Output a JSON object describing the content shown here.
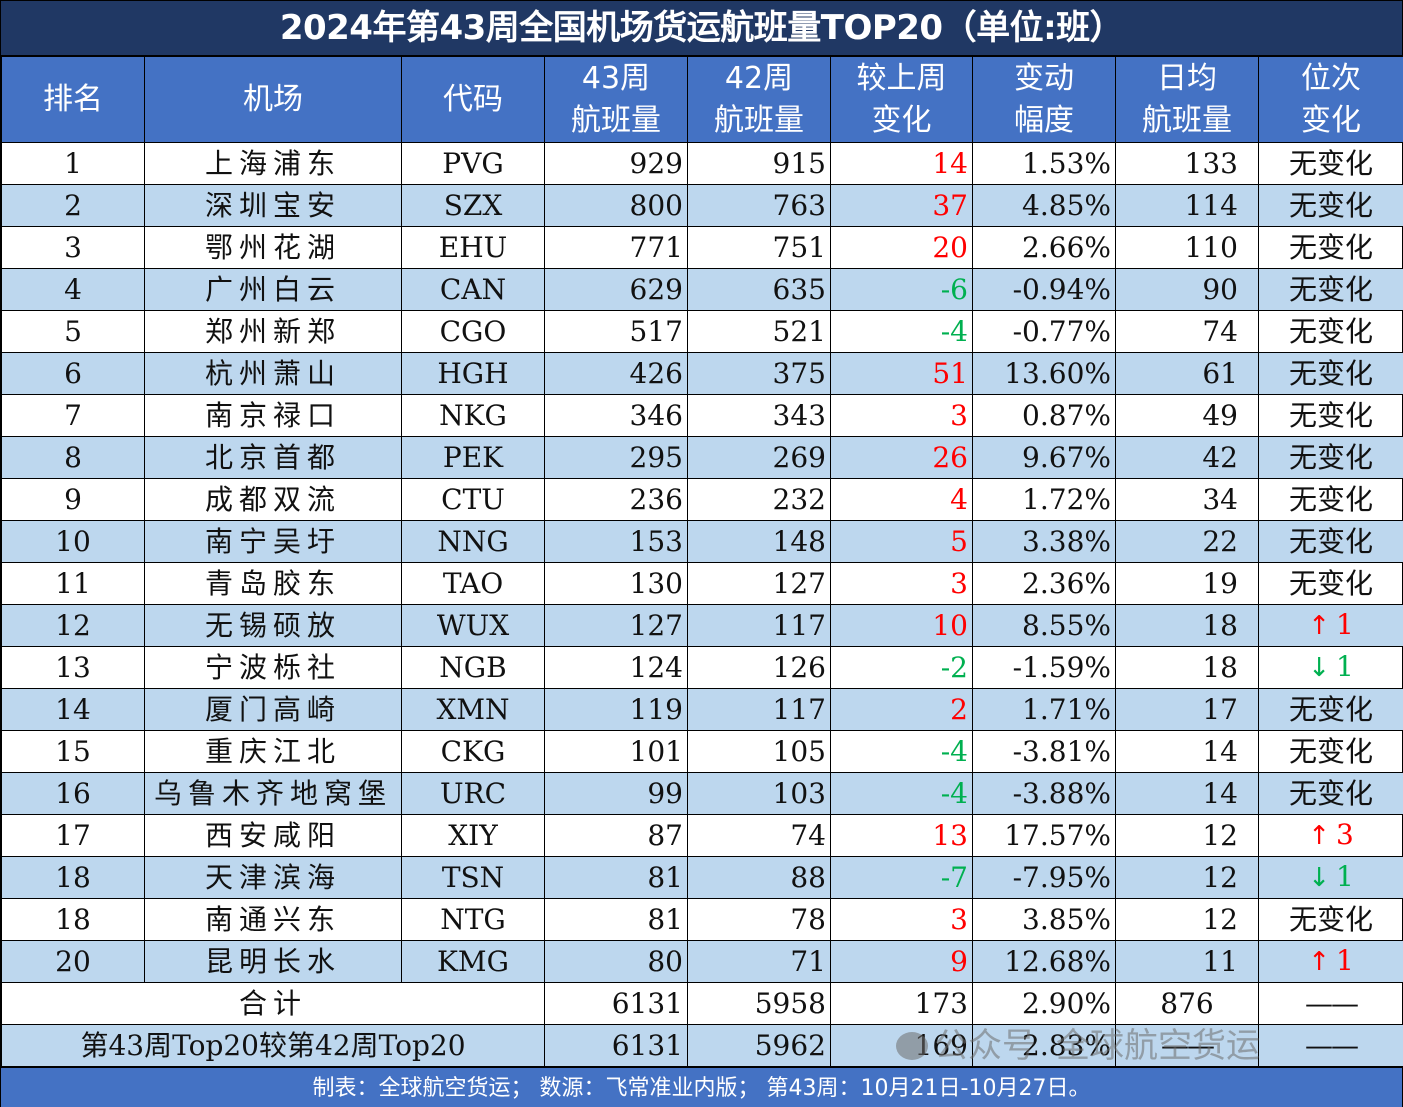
{
  "title": "2024年第43周全国机场货运航班量TOP20（单位:班）",
  "columns": [
    "排名",
    "机场",
    "代码",
    "43周\n航班量",
    "42周\n航班量",
    "较上周\n变化",
    "变动\n幅度",
    "日均\n航班量",
    "位次\n变化"
  ],
  "header": {
    "rank": "排名",
    "airport": "机场",
    "code": "代码",
    "w43_l1": "43周",
    "w43_l2": "航班量",
    "w42_l1": "42周",
    "w42_l2": "航班量",
    "chg_l1": "较上周",
    "chg_l2": "变化",
    "pct_l1": "变动",
    "pct_l2": "幅度",
    "daily_l1": "日均",
    "daily_l2": "航班量",
    "rankchg_l1": "位次",
    "rankchg_l2": "变化"
  },
  "rows": [
    {
      "rank": "1",
      "airport": "上海浦东",
      "code": "PVG",
      "w43": "929",
      "w42": "915",
      "change": "14",
      "change_dir": "up",
      "pct": "1.53%",
      "daily": "133",
      "rank_change": "无变化",
      "rank_dir": "none"
    },
    {
      "rank": "2",
      "airport": "深圳宝安",
      "code": "SZX",
      "w43": "800",
      "w42": "763",
      "change": "37",
      "change_dir": "up",
      "pct": "4.85%",
      "daily": "114",
      "rank_change": "无变化",
      "rank_dir": "none"
    },
    {
      "rank": "3",
      "airport": "鄂州花湖",
      "code": "EHU",
      "w43": "771",
      "w42": "751",
      "change": "20",
      "change_dir": "up",
      "pct": "2.66%",
      "daily": "110",
      "rank_change": "无变化",
      "rank_dir": "none"
    },
    {
      "rank": "4",
      "airport": "广州白云",
      "code": "CAN",
      "w43": "629",
      "w42": "635",
      "change": "-6",
      "change_dir": "down",
      "pct": "-0.94%",
      "daily": "90",
      "rank_change": "无变化",
      "rank_dir": "none"
    },
    {
      "rank": "5",
      "airport": "郑州新郑",
      "code": "CGO",
      "w43": "517",
      "w42": "521",
      "change": "-4",
      "change_dir": "down",
      "pct": "-0.77%",
      "daily": "74",
      "rank_change": "无变化",
      "rank_dir": "none"
    },
    {
      "rank": "6",
      "airport": "杭州萧山",
      "code": "HGH",
      "w43": "426",
      "w42": "375",
      "change": "51",
      "change_dir": "up",
      "pct": "13.60%",
      "daily": "61",
      "rank_change": "无变化",
      "rank_dir": "none"
    },
    {
      "rank": "7",
      "airport": "南京禄口",
      "code": "NKG",
      "w43": "346",
      "w42": "343",
      "change": "3",
      "change_dir": "up",
      "pct": "0.87%",
      "daily": "49",
      "rank_change": "无变化",
      "rank_dir": "none"
    },
    {
      "rank": "8",
      "airport": "北京首都",
      "code": "PEK",
      "w43": "295",
      "w42": "269",
      "change": "26",
      "change_dir": "up",
      "pct": "9.67%",
      "daily": "42",
      "rank_change": "无变化",
      "rank_dir": "none"
    },
    {
      "rank": "9",
      "airport": "成都双流",
      "code": "CTU",
      "w43": "236",
      "w42": "232",
      "change": "4",
      "change_dir": "up",
      "pct": "1.72%",
      "daily": "34",
      "rank_change": "无变化",
      "rank_dir": "none"
    },
    {
      "rank": "10",
      "airport": "南宁吴圩",
      "code": "NNG",
      "w43": "153",
      "w42": "148",
      "change": "5",
      "change_dir": "up",
      "pct": "3.38%",
      "daily": "22",
      "rank_change": "无变化",
      "rank_dir": "none"
    },
    {
      "rank": "11",
      "airport": "青岛胶东",
      "code": "TAO",
      "w43": "130",
      "w42": "127",
      "change": "3",
      "change_dir": "up",
      "pct": "2.36%",
      "daily": "19",
      "rank_change": "无变化",
      "rank_dir": "none"
    },
    {
      "rank": "12",
      "airport": "无锡硕放",
      "code": "WUX",
      "w43": "127",
      "w42": "117",
      "change": "10",
      "change_dir": "up",
      "pct": "8.55%",
      "daily": "18",
      "rank_change": "1",
      "rank_dir": "up"
    },
    {
      "rank": "13",
      "airport": "宁波栎社",
      "code": "NGB",
      "w43": "124",
      "w42": "126",
      "change": "-2",
      "change_dir": "down",
      "pct": "-1.59%",
      "daily": "18",
      "rank_change": "1",
      "rank_dir": "down"
    },
    {
      "rank": "14",
      "airport": "厦门高崎",
      "code": "XMN",
      "w43": "119",
      "w42": "117",
      "change": "2",
      "change_dir": "up",
      "pct": "1.71%",
      "daily": "17",
      "rank_change": "无变化",
      "rank_dir": "none"
    },
    {
      "rank": "15",
      "airport": "重庆江北",
      "code": "CKG",
      "w43": "101",
      "w42": "105",
      "change": "-4",
      "change_dir": "down",
      "pct": "-3.81%",
      "daily": "14",
      "rank_change": "无变化",
      "rank_dir": "none"
    },
    {
      "rank": "16",
      "airport": "乌鲁木齐地窝堡",
      "code": "URC",
      "w43": "99",
      "w42": "103",
      "change": "-4",
      "change_dir": "down",
      "pct": "-3.88%",
      "daily": "14",
      "rank_change": "无变化",
      "rank_dir": "none"
    },
    {
      "rank": "17",
      "airport": "西安咸阳",
      "code": "XIY",
      "w43": "87",
      "w42": "74",
      "change": "13",
      "change_dir": "up",
      "pct": "17.57%",
      "daily": "12",
      "rank_change": "3",
      "rank_dir": "up"
    },
    {
      "rank": "18",
      "airport": "天津滨海",
      "code": "TSN",
      "w43": "81",
      "w42": "88",
      "change": "-7",
      "change_dir": "down",
      "pct": "-7.95%",
      "daily": "12",
      "rank_change": "1",
      "rank_dir": "down"
    },
    {
      "rank": "18",
      "airport": "南通兴东",
      "code": "NTG",
      "w43": "81",
      "w42": "78",
      "change": "3",
      "change_dir": "up",
      "pct": "3.85%",
      "daily": "12",
      "rank_change": "无变化",
      "rank_dir": "none"
    },
    {
      "rank": "20",
      "airport": "昆明长水",
      "code": "KMG",
      "w43": "80",
      "w42": "71",
      "change": "9",
      "change_dir": "up",
      "pct": "12.68%",
      "daily": "11",
      "rank_change": "1",
      "rank_dir": "up"
    }
  ],
  "total": {
    "label": "合计",
    "w43": "6131",
    "w42": "5958",
    "change": "173",
    "pct": "2.90%",
    "daily": "876",
    "rank_change": "——"
  },
  "comparison": {
    "label": "第43周Top20较第42周Top20",
    "w43": "6131",
    "w42": "5962",
    "change": "169",
    "pct": "2.83%",
    "daily": "——",
    "rank_change": "——"
  },
  "footer": "制表：全球航空货运；  数源：飞常准业内版；  第43周：10月21日-10月27日。",
  "watermark": {
    "prefix": "公众号",
    "name": "全球航空货运",
    "icon": "wechat-icon"
  },
  "arrows": {
    "up": "↑",
    "down": "↓"
  },
  "colors": {
    "title_bg": "#203864",
    "header_bg": "#4472c4",
    "band_bg": "#bdd7ee",
    "positive": "#ff0000",
    "negative": "#00b050",
    "footer_bg": "#4472c4"
  }
}
